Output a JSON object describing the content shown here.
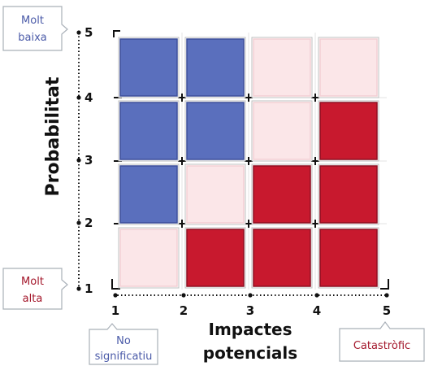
{
  "y_axis": {
    "title": "Probabilitat",
    "ticks": [
      "1",
      "2",
      "3",
      "4",
      "5"
    ],
    "top_callout": [
      "Molt",
      "baixa"
    ],
    "bottom_callout": [
      "Molt",
      "alta"
    ]
  },
  "x_axis": {
    "title_line1": "Impactes",
    "title_line2": "potencials",
    "ticks": [
      "1",
      "2",
      "3",
      "4",
      "5"
    ],
    "left_callout": [
      "No",
      "significatiu"
    ],
    "right_callout": [
      "Catastròfic"
    ]
  },
  "colors": {
    "blue": "#5a6fbd",
    "pink": "#fbe6e8",
    "red": "#c8192e",
    "blue_text": "#4a5aa8",
    "red_text": "#a3162a"
  },
  "grid": [
    [
      "blue",
      "blue",
      "pink",
      "pink"
    ],
    [
      "blue",
      "blue",
      "pink",
      "red"
    ],
    [
      "blue",
      "pink",
      "red",
      "red"
    ],
    [
      "pink",
      "red",
      "red",
      "red"
    ]
  ]
}
